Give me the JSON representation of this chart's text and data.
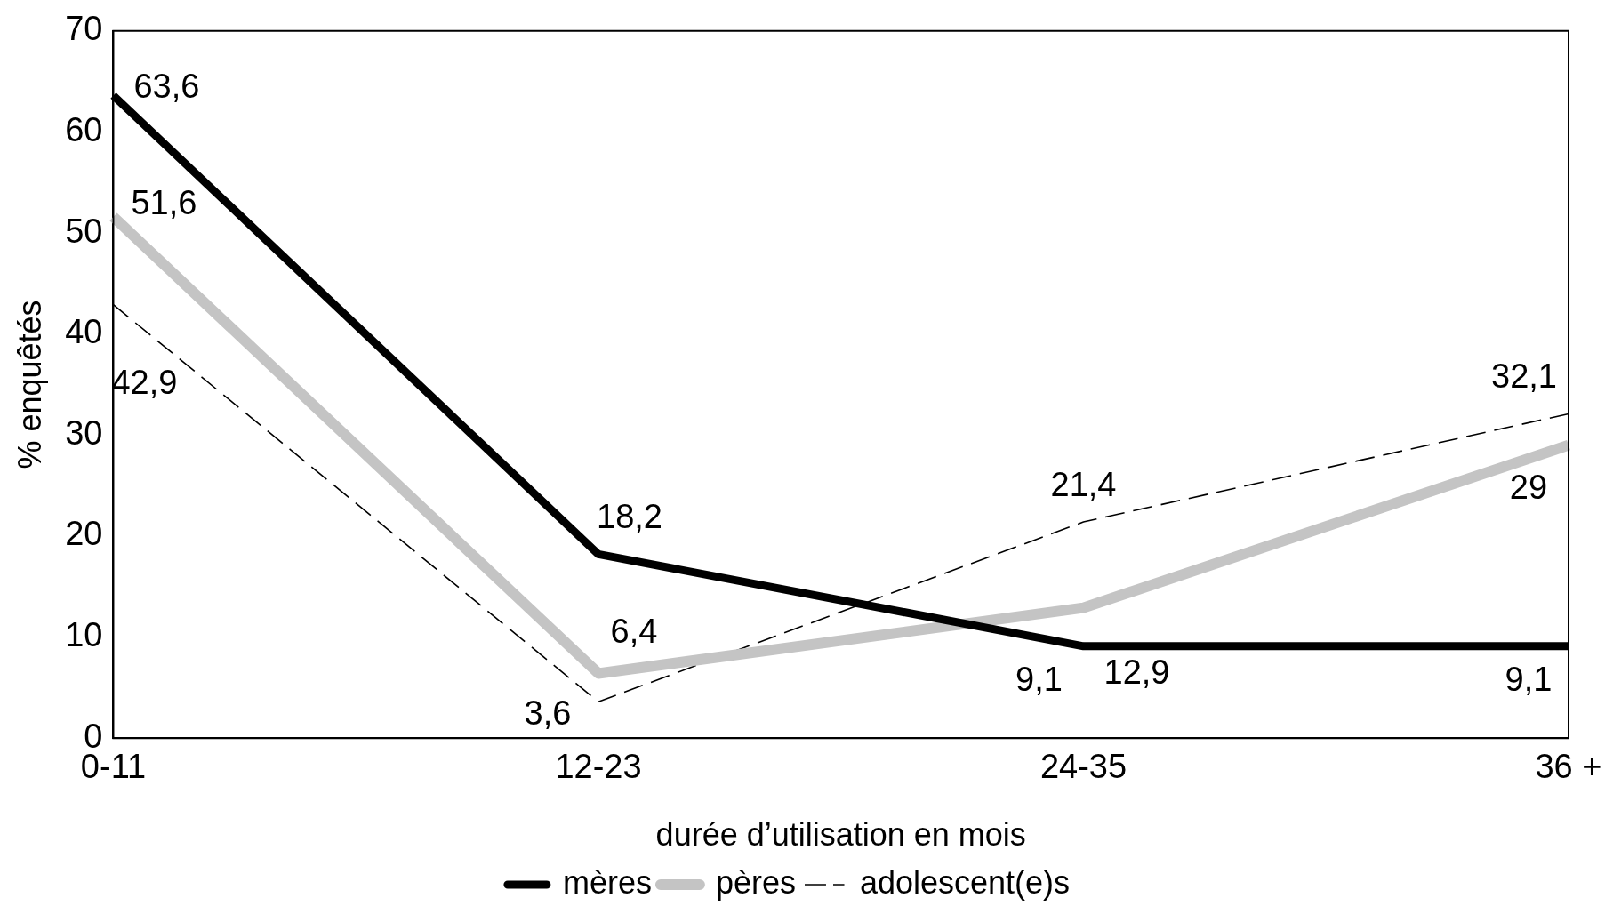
{
  "chart_data": {
    "type": "line",
    "xlabel": "durée d’utilisation en mois",
    "ylabel": "% enquêtés",
    "categories": [
      "0-11",
      "12-23",
      "24-35",
      "36 +"
    ],
    "ylim": [
      0,
      70
    ],
    "yticks": [
      0,
      10,
      20,
      30,
      40,
      50,
      60,
      70
    ],
    "grid": false,
    "legend": "bottom",
    "marker": "none",
    "series": [
      {
        "name": "mères",
        "color": "#000000",
        "line_style": "solid",
        "values": [
          63.6,
          18.2,
          9.1,
          9.1
        ],
        "value_labels": [
          "63,6",
          "18,2",
          "9,1",
          "9,1"
        ]
      },
      {
        "name": "pères",
        "color": "#c4c4c4",
        "line_style": "solid",
        "values": [
          51.6,
          6.4,
          12.9,
          29
        ],
        "value_labels": [
          "51,6",
          "6,4",
          "12,9",
          "29"
        ]
      },
      {
        "name": "adolescent(e)s",
        "color": "#000000",
        "line_style": "dashed",
        "values": [
          42.9,
          3.6,
          21.4,
          32.1
        ],
        "value_labels": [
          "42,9",
          "3,6",
          "21,4",
          "32,1"
        ]
      }
    ]
  }
}
